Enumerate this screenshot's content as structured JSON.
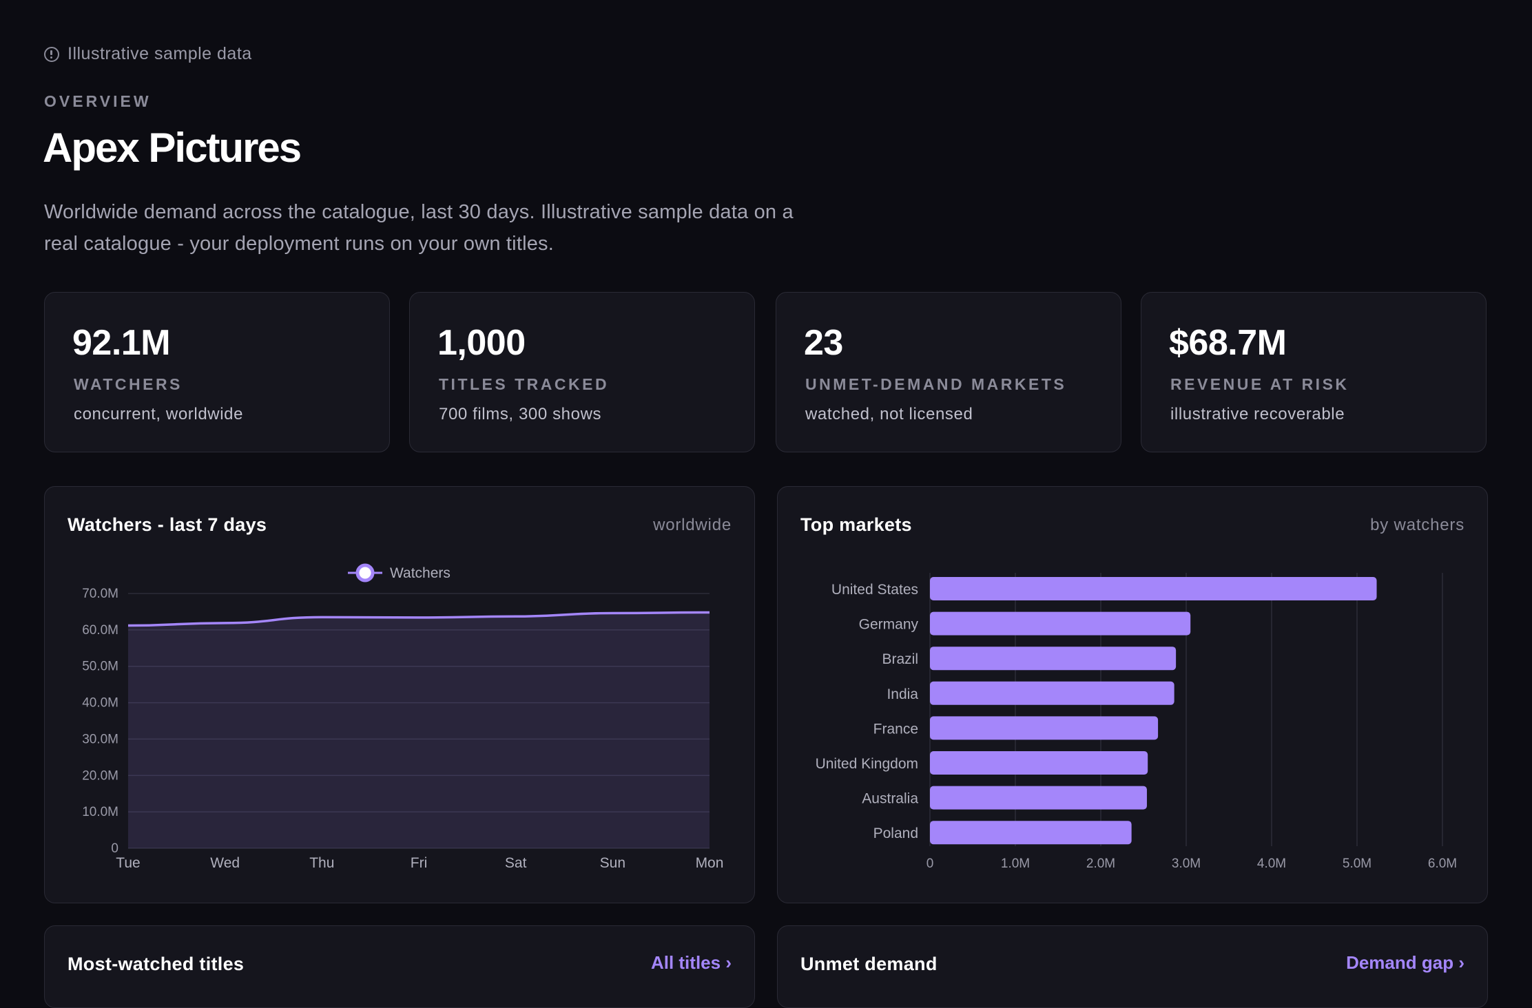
{
  "notice": {
    "text": "Illustrative sample data",
    "icon": "info-circle-icon"
  },
  "header": {
    "eyebrow": "OVERVIEW",
    "title": "Apex Pictures",
    "subtitle": "Worldwide demand across the catalogue, last 30 days. Illustrative sample data on a real catalogue - your deployment runs on your own titles."
  },
  "kpis": [
    {
      "value": "92.1M",
      "label": "WATCHERS",
      "sub": "concurrent, worldwide"
    },
    {
      "value": "1,000",
      "label": "TITLES TRACKED",
      "sub": "700 films, 300 shows"
    },
    {
      "value": "23",
      "label": "UNMET-DEMAND MARKETS",
      "sub": "watched, not licensed"
    },
    {
      "value": "$68.7M",
      "label": "REVENUE AT RISK",
      "sub": "illustrative recoverable"
    }
  ],
  "watchers_card": {
    "title": "Watchers - last 7 days",
    "tag": "worldwide"
  },
  "markets_card": {
    "title": "Top markets",
    "tag": "by watchers"
  },
  "titles_card": {
    "title": "Most-watched titles",
    "link": "All titles"
  },
  "unmet_card": {
    "title": "Unmet demand",
    "link": "Demand gap"
  },
  "colors": {
    "accent": "#a486fa",
    "background": "#0c0c12",
    "card": "#15151d",
    "border": "#2a2a35"
  },
  "chart_data": [
    {
      "type": "area",
      "categories": [
        "Tue",
        "Wed",
        "Thu",
        "Fri",
        "Sat",
        "Sun",
        "Mon"
      ],
      "series": [
        {
          "name": "Watchers",
          "values": [
            61.2,
            61.9,
            63.5,
            63.4,
            63.7,
            64.6,
            64.8
          ]
        }
      ],
      "y_ticks": [
        "0",
        "10.0M",
        "20.0M",
        "30.0M",
        "40.0M",
        "50.0M",
        "60.0M",
        "70.0M"
      ],
      "ylim": [
        0,
        70
      ],
      "unit": "M",
      "legend": "top-center",
      "grid": true
    },
    {
      "type": "bar",
      "orientation": "horizontal",
      "categories": [
        "United States",
        "Germany",
        "Brazil",
        "India",
        "France",
        "United Kingdom",
        "Australia",
        "Poland"
      ],
      "values": [
        5.23,
        3.05,
        2.88,
        2.86,
        2.67,
        2.55,
        2.54,
        2.36
      ],
      "x_ticks": [
        "0",
        "1.0M",
        "2.0M",
        "3.0M",
        "4.0M",
        "5.0M",
        "6.0M"
      ],
      "xlim": [
        0,
        6
      ],
      "unit": "M",
      "grid": true
    }
  ]
}
